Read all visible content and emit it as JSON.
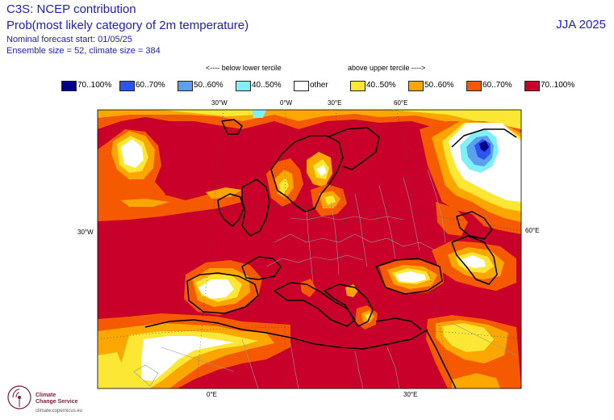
{
  "header": {
    "title": "C3S: NCEP contribution",
    "subtitle": "Prob(most likely category of 2m temperature)",
    "forecast_start": "Nominal forecast start: 01/05/25",
    "ensemble": "Ensemble size = 52, climate size = 384",
    "season": "JJA 2025"
  },
  "tercile_labels": {
    "below": "<---- below lower tercile",
    "above": "above upper tercile ---->"
  },
  "legend": [
    {
      "label": "70..100%",
      "color": "#00008f"
    },
    {
      "label": "60..70%",
      "color": "#2a55ee"
    },
    {
      "label": "50..60%",
      "color": "#5aa0ef"
    },
    {
      "label": "40..50%",
      "color": "#7ff1f6"
    },
    {
      "label": "other",
      "color": "#ffffff"
    },
    {
      "label": "40..50%",
      "color": "#fbe734"
    },
    {
      "label": "50..60%",
      "color": "#fba700"
    },
    {
      "label": "60..70%",
      "color": "#f55a00"
    },
    {
      "label": "70..100%",
      "color": "#c8002a"
    }
  ],
  "grid_labels": {
    "top": [
      "30°W",
      "0°W",
      "30°E",
      "60°E"
    ],
    "left": "30°W",
    "right": "60°E",
    "bottom": [
      "0°E",
      "30°E"
    ]
  },
  "branding": {
    "name_line1": "Climate",
    "name_line2": "Change Service",
    "url": "climate.copernicus.eu"
  }
}
